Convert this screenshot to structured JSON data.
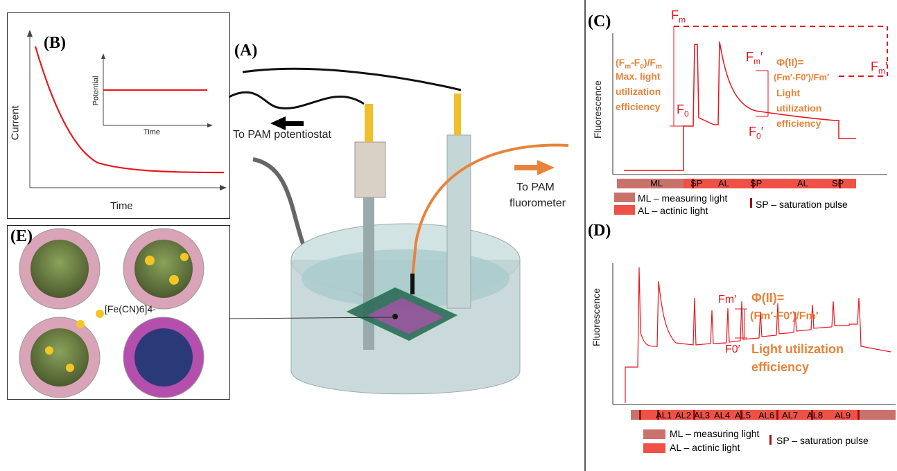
{
  "panel_labels": {
    "a": "(A)",
    "b": "(B)",
    "c": "(C)",
    "d": "(D)",
    "e": "(E)"
  },
  "panel_b": {
    "ylabel": "Current",
    "xlabel": "Time",
    "inset_ylabel": "Potential",
    "inset_xlabel": "Time"
  },
  "panel_a": {
    "to_potentiostat": "To PAM potentiostat",
    "to_fluorometer_1": "To PAM",
    "to_fluorometer_2": "fluorometer"
  },
  "panel_c": {
    "ylabel": "Fluorescence",
    "fm": "F",
    "fm_sub": "m",
    "f0": "F",
    "f0_sub": "0",
    "fm_prime": "F",
    "fm_prime_sub": "m",
    "prime": "′",
    "f0_prime": "F",
    "f0_prime_sub": "0",
    "eq_max_1": "(F",
    "eq_max_2": "-F",
    "eq_max_3": ")/F",
    "max_text_1": "Max. light",
    "max_text_2": "utilization",
    "max_text_3": "efficiency",
    "phi": "Φ(II)=",
    "phi_eq": "(Fm′-F0′)/Fm′",
    "phi_text_1": "Light",
    "phi_text_2": "utilization",
    "phi_text_3": "efficiency",
    "bar_labels": [
      "ML",
      "SP",
      "AL",
      "SP",
      "AL",
      "SP"
    ],
    "legend": {
      "ml": "ML – measuring light",
      "al": "AL – actinic light",
      "sp": "SP – saturation pulse"
    }
  },
  "panel_d": {
    "ylabel": "Fluorescence",
    "fm_prime": "Fm′",
    "f0_prime": "F0′",
    "phi": "Φ(II)=",
    "phi_eq": "(Fm′-F0′)/Fm′",
    "phi_text_1": "Light utilization",
    "phi_text_2": "efficiency",
    "bar_labels": [
      "AL1",
      "AL2",
      "AL3",
      "AL4",
      "AL5",
      "AL6",
      "AL7",
      "AL8",
      "AL9"
    ],
    "legend": {
      "ml": "ML – measuring light",
      "al": "AL – actinic light",
      "sp": "SP – saturation pulse"
    }
  },
  "panel_e": {
    "ion_label": "[Fe(CN)6]4-"
  },
  "colors": {
    "red": "#e8141c",
    "orange": "#e8833a",
    "ml_bar": "#c9726c",
    "al_bar": "#ef5147",
    "sp_mark": "#a01010"
  }
}
